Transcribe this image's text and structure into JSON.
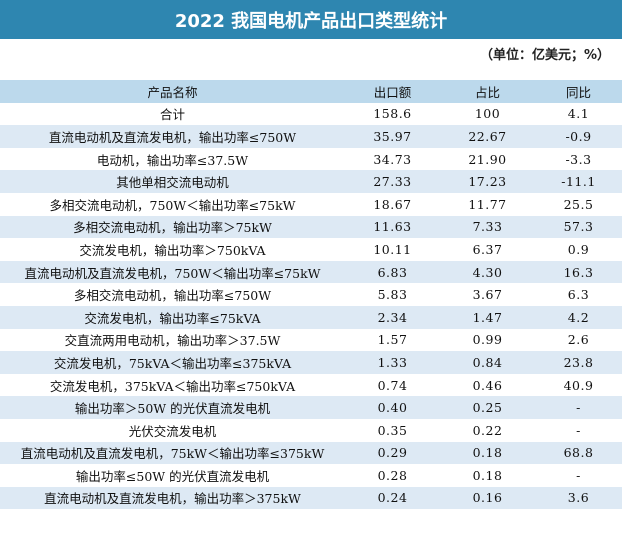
{
  "title": "2022 我国电机产品出口类型统计",
  "unit": "（单位：亿美元；%）",
  "table": {
    "headers": [
      "产品名称",
      "出口额",
      "占比",
      "同比"
    ],
    "rows": [
      [
        "合计",
        "158.6",
        "100",
        "4.1"
      ],
      [
        "直流电动机及直流发电机，输出功率≤750W",
        "35.97",
        "22.67",
        "-0.9"
      ],
      [
        "电动机，输出功率≤37.5W",
        "34.73",
        "21.90",
        "-3.3"
      ],
      [
        "其他单相交流电动机",
        "27.33",
        "17.23",
        "-11.1"
      ],
      [
        "多相交流电动机，750W＜输出功率≤75kW",
        "18.67",
        "11.77",
        "25.5"
      ],
      [
        "多相交流电动机，输出功率＞75kW",
        "11.63",
        "7.33",
        "57.3"
      ],
      [
        "交流发电机，输出功率＞750kVA",
        "10.11",
        "6.37",
        "0.9"
      ],
      [
        "直流电动机及直流发电机，750W＜输出功率≤75kW",
        "6.83",
        "4.30",
        "16.3"
      ],
      [
        "多相交流电动机，输出功率≤750W",
        "5.83",
        "3.67",
        "6.3"
      ],
      [
        "交流发电机，输出功率≤75kVA",
        "2.34",
        "1.47",
        "4.2"
      ],
      [
        "交直流两用电动机，输出功率＞37.5W",
        "1.57",
        "0.99",
        "2.6"
      ],
      [
        "交流发电机，75kVA＜输出功率≤375kVA",
        "1.33",
        "0.84",
        "23.8"
      ],
      [
        "交流发电机，375kVA＜输出功率≤750kVA",
        "0.74",
        "0.46",
        "40.9"
      ],
      [
        "输出功率＞50W 的光伏直流发电机",
        "0.40",
        "0.25",
        "-"
      ],
      [
        "光伏交流发电机",
        "0.35",
        "0.22",
        "-"
      ],
      [
        "直流电动机及直流发电机，75kW＜输出功率≤375kW",
        "0.29",
        "0.18",
        "68.8"
      ],
      [
        "输出功率≤50W 的光伏直流发电机",
        "0.28",
        "0.18",
        "-"
      ],
      [
        "直流电动机及直流发电机，输出功率＞375kW",
        "0.24",
        "0.16",
        "3.6"
      ]
    ]
  }
}
